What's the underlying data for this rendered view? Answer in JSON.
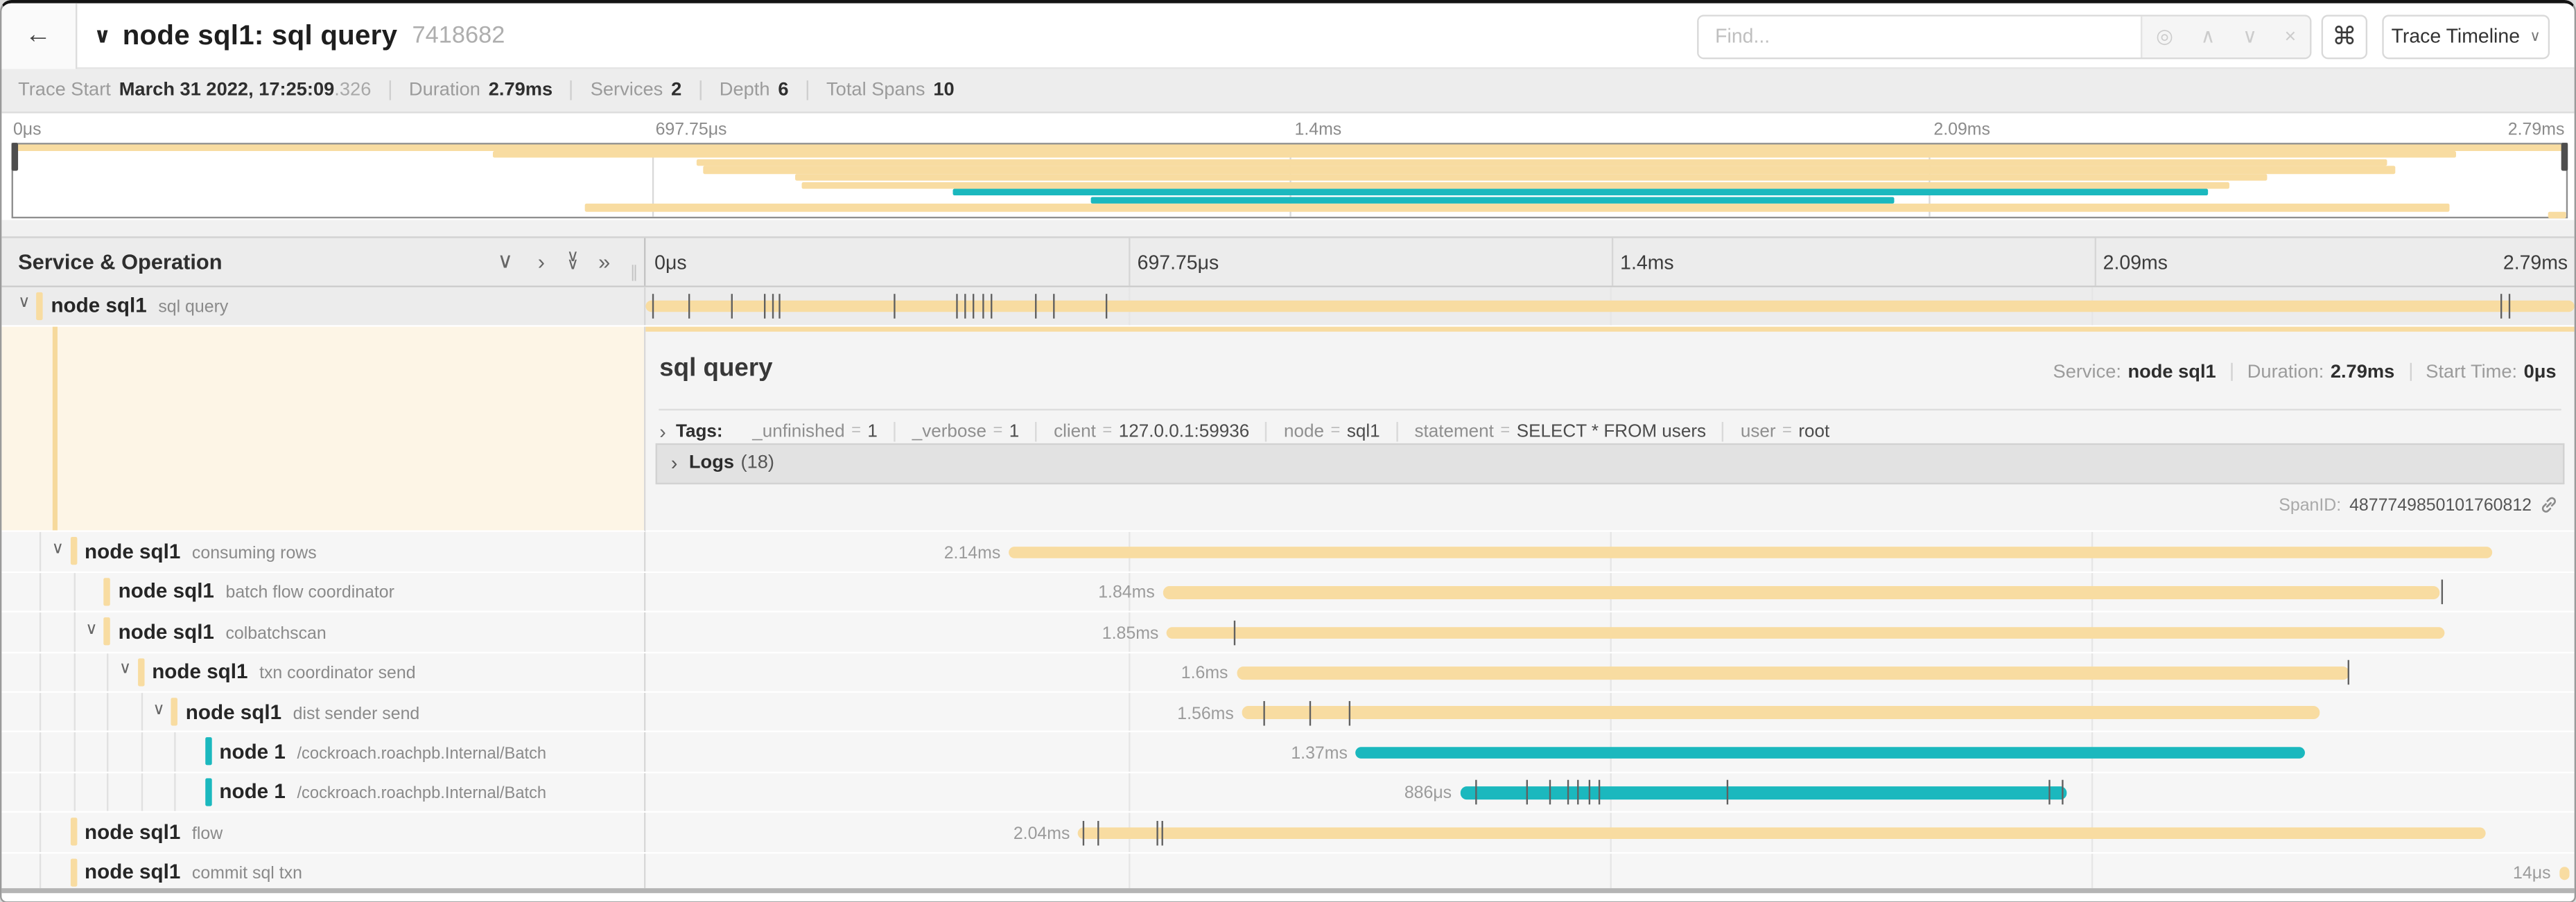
{
  "header": {
    "back_icon": "←",
    "collapse_chevron": "∨",
    "title": "node sql1: sql query",
    "trace_id": "7418682",
    "find": {
      "placeholder": "Find...",
      "target_icon": "◎",
      "prev_icon": "∧",
      "next_icon": "∨",
      "clear_icon": "×"
    },
    "shortcut_icon": "⌘",
    "view_selector": {
      "label": "Trace Timeline",
      "chevron": "∨"
    }
  },
  "meta": {
    "items": [
      {
        "label": "Trace Start",
        "value": "March 31 2022, 17:25:09",
        "suffix": ".326"
      },
      {
        "label": "Duration",
        "value": "2.79ms",
        "suffix": ""
      },
      {
        "label": "Services",
        "value": "2",
        "suffix": ""
      },
      {
        "label": "Depth",
        "value": "6",
        "suffix": ""
      },
      {
        "label": "Total Spans",
        "value": "10",
        "suffix": ""
      }
    ]
  },
  "ruler": {
    "ticks": [
      "0μs",
      "697.75μs",
      "1.4ms",
      "2.09ms",
      "2.79ms"
    ]
  },
  "section": {
    "title": "Service & Operation",
    "icons": [
      {
        "name": "collapse-one-icon",
        "glyph": "∨"
      },
      {
        "name": "expand-one-icon",
        "glyph": "›"
      },
      {
        "name": "collapse-all-icon",
        "glyph": "∨∨"
      },
      {
        "name": "expand-all-icon",
        "glyph": "»"
      }
    ],
    "grip": "∥"
  },
  "colors": {
    "tan": "#F8DCA1",
    "teal": "#1BB8BE",
    "tick": "#606060"
  },
  "minimap": {
    "rows": [
      {
        "start": 0,
        "end": 100,
        "color": "tan"
      },
      {
        "start": 18.8,
        "end": 95.7,
        "color": "tan"
      },
      {
        "start": 26.8,
        "end": 93.0,
        "color": "tan"
      },
      {
        "start": 27.0,
        "end": 93.3,
        "color": "tan"
      },
      {
        "start": 30.6,
        "end": 88.3,
        "color": "tan"
      },
      {
        "start": 30.9,
        "end": 86.8,
        "color": "tan"
      },
      {
        "start": 36.8,
        "end": 86.0,
        "color": "teal"
      },
      {
        "start": 42.2,
        "end": 73.7,
        "color": "teal"
      },
      {
        "start": 22.4,
        "end": 95.4,
        "color": "tan"
      },
      {
        "start": 99.3,
        "end": 100,
        "color": "tan"
      }
    ]
  },
  "spans": [
    {
      "service": "node sql1",
      "operation": "sql query",
      "level": 0,
      "chevron": true,
      "color": "tan",
      "selected": true,
      "duration": "",
      "start": 0,
      "width": 100,
      "ticks": [
        0.3,
        2.2,
        4.4,
        6.1,
        6.5,
        6.9,
        12.8,
        16.1,
        16.5,
        16.9,
        17.4,
        17.9,
        20.2,
        21.1,
        23.8,
        96.2,
        96.6
      ]
    },
    {
      "service": "node sql1",
      "operation": "consuming rows",
      "level": 1,
      "chevron": true,
      "color": "tan",
      "duration": "2.14ms",
      "start": 18.8,
      "width": 76.9,
      "ticks": []
    },
    {
      "service": "node sql1",
      "operation": "batch flow coordinator",
      "level": 2,
      "chevron": false,
      "color": "tan",
      "duration": "1.84ms",
      "start": 26.8,
      "width": 66.2,
      "ticks": [
        93.1
      ]
    },
    {
      "service": "node sql1",
      "operation": "colbatchscan",
      "level": 2,
      "chevron": true,
      "color": "tan",
      "duration": "1.85ms",
      "start": 27.0,
      "width": 66.3,
      "ticks": [
        30.5
      ]
    },
    {
      "service": "node sql1",
      "operation": "txn coordinator send",
      "level": 3,
      "chevron": true,
      "color": "tan",
      "duration": "1.6ms",
      "start": 30.6,
      "width": 57.7,
      "ticks": [
        88.2
      ]
    },
    {
      "service": "node sql1",
      "operation": "dist sender send",
      "level": 4,
      "chevron": true,
      "color": "tan",
      "duration": "1.56ms",
      "start": 30.9,
      "width": 55.9,
      "ticks": [
        32.0,
        34.4,
        36.4
      ]
    },
    {
      "service": "node 1",
      "operation": "/cockroach.roachpb.Internal/Batch",
      "level": 5,
      "chevron": false,
      "color": "teal",
      "duration": "1.37ms",
      "start": 36.8,
      "width": 49.2,
      "ticks": []
    },
    {
      "service": "node 1",
      "operation": "/cockroach.roachpb.Internal/Batch",
      "level": 5,
      "chevron": false,
      "color": "teal",
      "duration": "886μs",
      "start": 42.2,
      "width": 31.5,
      "ticks": [
        43.0,
        45.6,
        46.8,
        47.8,
        48.3,
        48.9,
        49.4,
        56.0,
        72.7,
        73.4
      ]
    },
    {
      "service": "node sql1",
      "operation": "flow",
      "level": 1,
      "chevron": false,
      "color": "tan",
      "duration": "2.04ms",
      "start": 22.4,
      "width": 73.0,
      "ticks": [
        22.6,
        23.4,
        26.5,
        26.7
      ]
    },
    {
      "service": "node sql1",
      "operation": "commit sql txn",
      "level": 1,
      "chevron": false,
      "color": "tan",
      "duration": "14μs",
      "start": 99.2,
      "width": 0.55,
      "ticks": []
    }
  ],
  "detail": {
    "title": "sql query",
    "overview": [
      {
        "label": "Service:",
        "value": "node sql1"
      },
      {
        "label": "Duration:",
        "value": "2.79ms"
      },
      {
        "label": "Start Time:",
        "value": "0μs"
      }
    ],
    "tags_chevron": "›",
    "tags_label": "Tags:",
    "tags": [
      {
        "key": "_unfinished",
        "value": "1"
      },
      {
        "key": "_verbose",
        "value": "1"
      },
      {
        "key": "client",
        "value": "127.0.0.1:59936"
      },
      {
        "key": "node",
        "value": "sql1"
      },
      {
        "key": "statement",
        "value": "SELECT * FROM users"
      },
      {
        "key": "user",
        "value": "root"
      }
    ],
    "logs_label": "Logs",
    "logs_count": "(18)",
    "spanid_label": "SpanID:",
    "spanid_value": "4877749850101760812"
  }
}
